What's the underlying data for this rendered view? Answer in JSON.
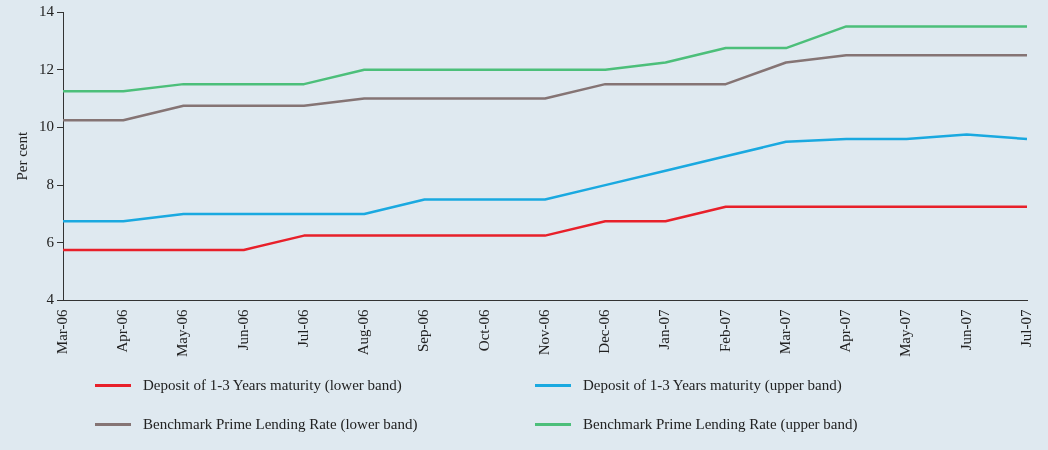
{
  "chart_data": {
    "type": "line",
    "ylabel": "Per cent",
    "categories": [
      "Mar-06",
      "Apr-06",
      "May-06",
      "Jun-06",
      "Jul-06",
      "Aug-06",
      "Sep-06",
      "Oct-06",
      "Nov-06",
      "Dec-06",
      "Jan-07",
      "Feb-07",
      "Mar-07",
      "Apr-07",
      "May-07",
      "Jun-07",
      "Jul-07"
    ],
    "ylim": [
      4,
      14
    ],
    "yticks": [
      4,
      6,
      8,
      10,
      12,
      14
    ],
    "grid": false,
    "legend": "bottom",
    "marker": "none",
    "line_style": "solid",
    "series": [
      {
        "name": "Deposit of 1-3 Years maturity (lower band)",
        "color": "#e8202a",
        "values": [
          5.75,
          5.75,
          5.75,
          5.75,
          6.25,
          6.25,
          6.25,
          6.25,
          6.25,
          6.75,
          6.75,
          7.25,
          7.25,
          7.25,
          7.25,
          7.25,
          7.25
        ]
      },
      {
        "name": "Deposit of 1-3 Years maturity (upper band)",
        "color": "#1aa9e0",
        "values": [
          6.75,
          6.75,
          7,
          7,
          7,
          7,
          7.5,
          7.5,
          7.5,
          8,
          8.5,
          9,
          9.5,
          9.6,
          9.6,
          9.75,
          9.6
        ]
      },
      {
        "name": "Benchmark Prime Lending Rate (lower band)",
        "color": "#857474",
        "values": [
          10.25,
          10.25,
          10.75,
          10.75,
          10.75,
          11,
          11,
          11,
          11,
          11.5,
          11.5,
          11.5,
          12.25,
          12.5,
          12.5,
          12.5,
          12.5
        ]
      },
      {
        "name": "Benchmark Prime Lending Rate (upper band)",
        "color": "#4cbf7a",
        "values": [
          11.25,
          11.25,
          11.5,
          11.5,
          11.5,
          12,
          12,
          12,
          12,
          12,
          12.25,
          12.75,
          12.75,
          13.5,
          13.5,
          13.5,
          13.5
        ]
      }
    ]
  }
}
